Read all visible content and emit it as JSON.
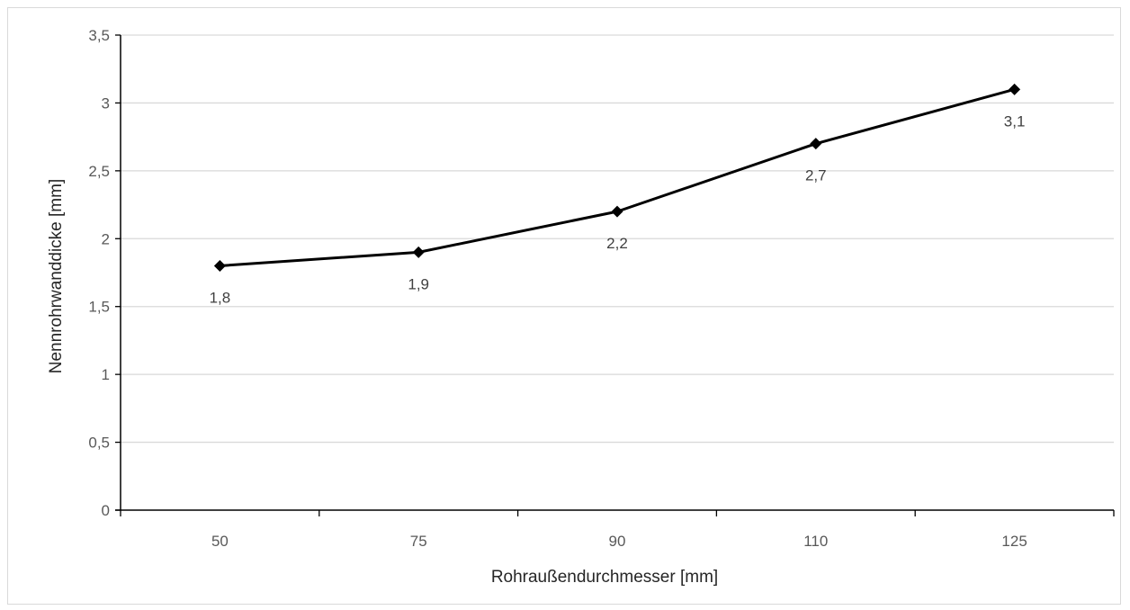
{
  "chart_data": {
    "type": "line",
    "title": "",
    "xlabel": "Rohraußendurchmesser [mm]",
    "ylabel": "Nennrohrwanddicke [mm]",
    "categories": [
      "50",
      "75",
      "90",
      "110",
      "125"
    ],
    "series": [
      {
        "values": [
          1.8,
          1.9,
          2.2,
          2.7,
          3.1
        ],
        "data_labels": [
          "1,8",
          "1,9",
          "2,2",
          "2,7",
          "3,1"
        ],
        "color": "#000000",
        "marker": "diamond"
      }
    ],
    "ylim": [
      0,
      3.5
    ],
    "y_ticks": [
      0,
      0.5,
      1,
      1.5,
      2,
      2.5,
      3,
      3.5
    ],
    "y_tick_labels": [
      "0",
      "0,5",
      "1",
      "1,5",
      "2",
      "2,5",
      "3",
      "3,5"
    ],
    "grid": "horizontal",
    "legend": "none",
    "colors": {
      "line": "#000000",
      "grid": "#d9d9d9",
      "axis": "#000000"
    }
  }
}
